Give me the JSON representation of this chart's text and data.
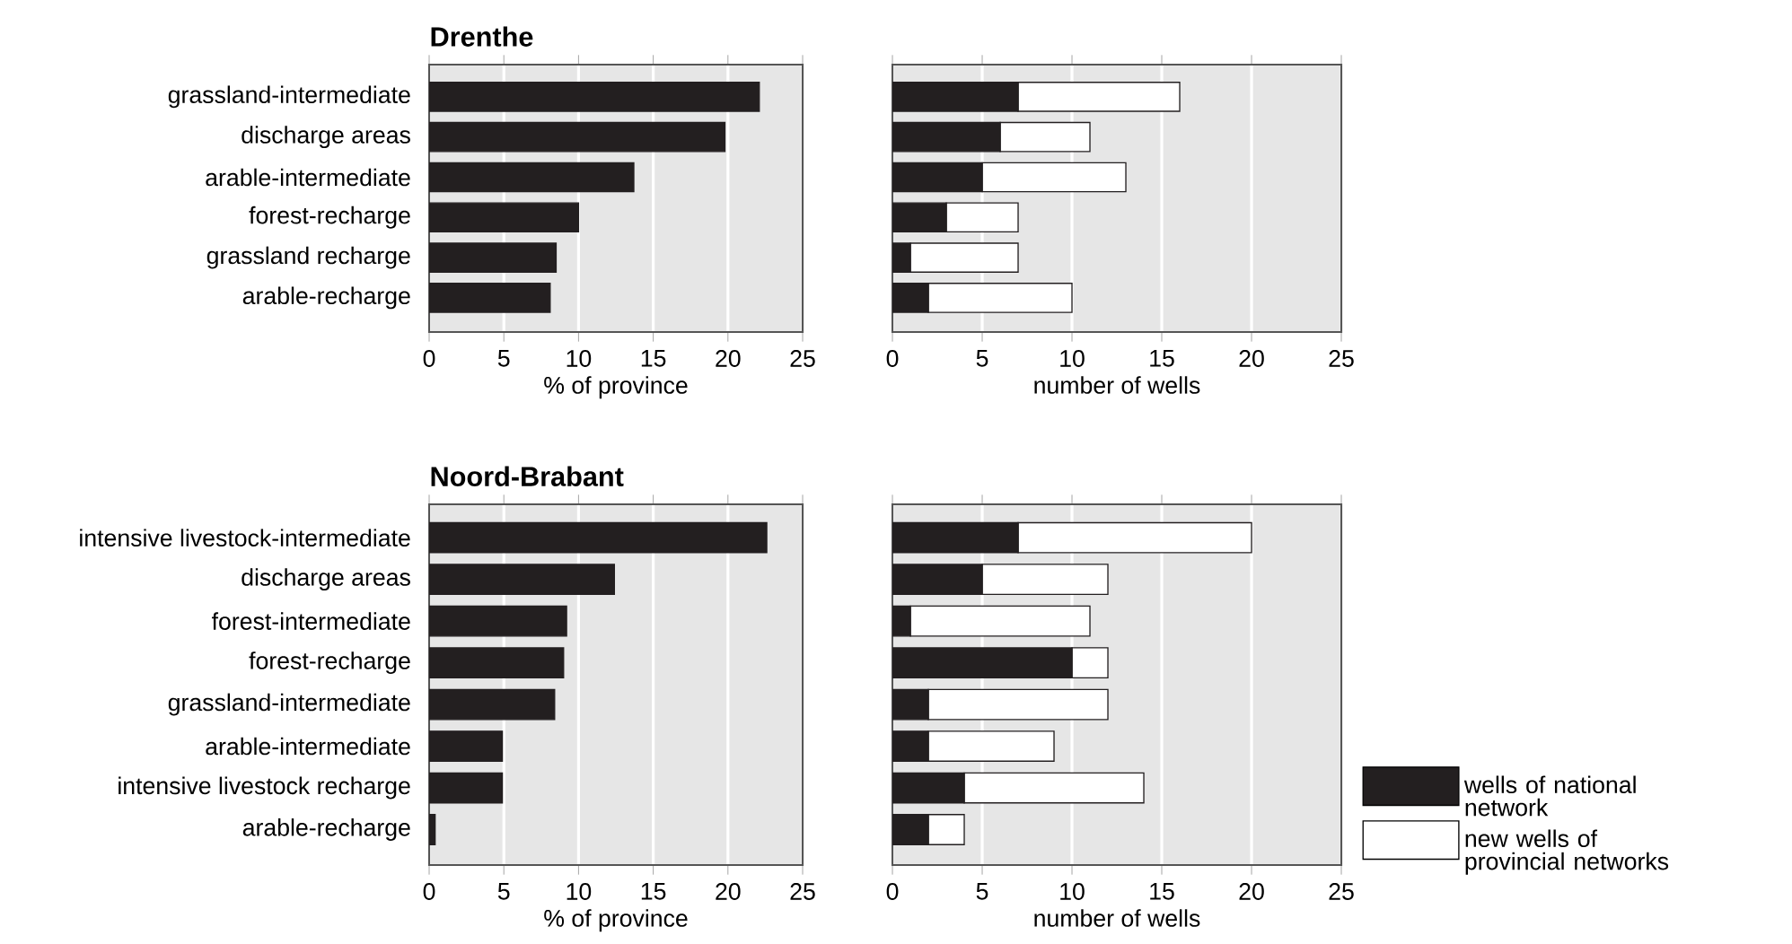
{
  "chart_data": [
    {
      "type": "bar",
      "orientation": "horizontal",
      "title": "Drenthe",
      "categories": [
        "grassland-intermediate",
        "discharge areas",
        "arable-intermediate",
        "forest-recharge",
        "grassland recharge",
        "arable-recharge"
      ],
      "values": [
        22.1,
        19.8,
        13.7,
        10,
        8.5,
        8.1
      ],
      "color": "#231f20",
      "xlim": [
        0,
        25
      ],
      "xticks": [
        0,
        5,
        10,
        15,
        20,
        25
      ],
      "xlabel": "% of province",
      "grid": "x"
    },
    {
      "type": "bar",
      "orientation": "horizontal",
      "stacked": true,
      "categories": [
        null,
        null,
        null,
        null,
        null,
        null
      ],
      "series": [
        {
          "color": "#231f20",
          "values": [
            7,
            6,
            5,
            3,
            1,
            2
          ]
        },
        {
          "color": "#ffffff",
          "values": [
            9,
            5,
            8,
            4,
            6,
            8
          ]
        }
      ],
      "xlim": [
        0,
        25
      ],
      "xticks": [
        0,
        5,
        10,
        15,
        20,
        25
      ],
      "xlabel": "number of wells",
      "grid": "x",
      "tick_labels": "x"
    },
    {
      "type": "bar",
      "orientation": "horizontal",
      "title": "Noord-Brabant",
      "categories": [
        "intensive livestock-intermediate",
        "discharge areas",
        "forest-intermediate",
        "forest-recharge",
        "grassland-intermediate",
        "arable-intermediate",
        "intensive livestock recharge",
        "arable-recharge"
      ],
      "values": [
        22.6,
        12.4,
        9.2,
        9.0,
        8.4,
        4.9,
        4.9,
        0.4
      ],
      "color": "#231f20",
      "xlim": [
        0,
        25
      ],
      "xticks": [
        0,
        5,
        10,
        15,
        20,
        25
      ],
      "xlabel": "% of province",
      "grid": "x"
    },
    {
      "type": "bar",
      "orientation": "horizontal",
      "stacked": true,
      "categories": [
        null,
        null,
        null,
        null,
        null,
        null,
        null,
        null
      ],
      "series": [
        {
          "name": "wells of national network",
          "color": "#231f20",
          "values": [
            7,
            5,
            1,
            10,
            2,
            2,
            4,
            2
          ]
        },
        {
          "name": "new wells of provincial networks",
          "color": "#ffffff",
          "values": [
            13,
            7,
            10,
            2,
            10,
            7,
            10,
            2
          ]
        }
      ],
      "xlim": [
        0,
        25
      ],
      "xticks": [
        0,
        5,
        10,
        15,
        20,
        25
      ],
      "xlabel": "number of wells",
      "grid": "x",
      "tick_labels": "x",
      "legend": "right"
    }
  ]
}
